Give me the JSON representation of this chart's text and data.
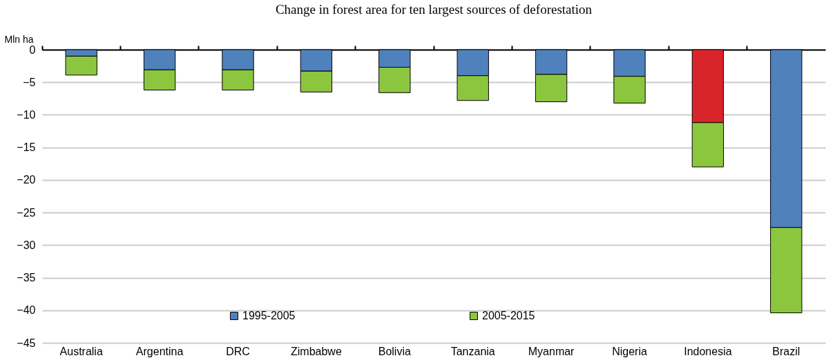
{
  "chart_data": {
    "type": "bar",
    "title": "Change in forest area for ten largest sources of deforestation",
    "ylabel": "Mln ha",
    "categories": [
      "Australia",
      "Argentina",
      "DRC",
      "Zimbabwe",
      "Bolivia",
      "Tanzania",
      "Myanmar",
      "Nigeria",
      "Indonesia",
      "Brazil"
    ],
    "stacked": true,
    "series": [
      {
        "name": "1995-2005",
        "color": "#4f81bd",
        "colors": [
          "#4f81bd",
          "#4f81bd",
          "#4f81bd",
          "#4f81bd",
          "#4f81bd",
          "#4f81bd",
          "#4f81bd",
          "#4f81bd",
          "#d9232a",
          "#4f81bd"
        ],
        "values": [
          -1.0,
          -3.1,
          -3.1,
          -3.3,
          -2.7,
          -4.0,
          -3.8,
          -4.1,
          -11.2,
          -27.3
        ]
      },
      {
        "name": "2005-2015",
        "color": "#8cc63f",
        "values": [
          -2.9,
          -3.1,
          -3.1,
          -3.2,
          -3.9,
          -3.8,
          -4.2,
          -4.1,
          -6.8,
          -13.1
        ]
      }
    ],
    "ylim": [
      -45,
      0
    ],
    "yticks": [
      -45,
      -40,
      -35,
      -30,
      -25,
      -20,
      -15,
      -10,
      -5,
      0
    ],
    "grid": "y",
    "legend": "bottom"
  }
}
